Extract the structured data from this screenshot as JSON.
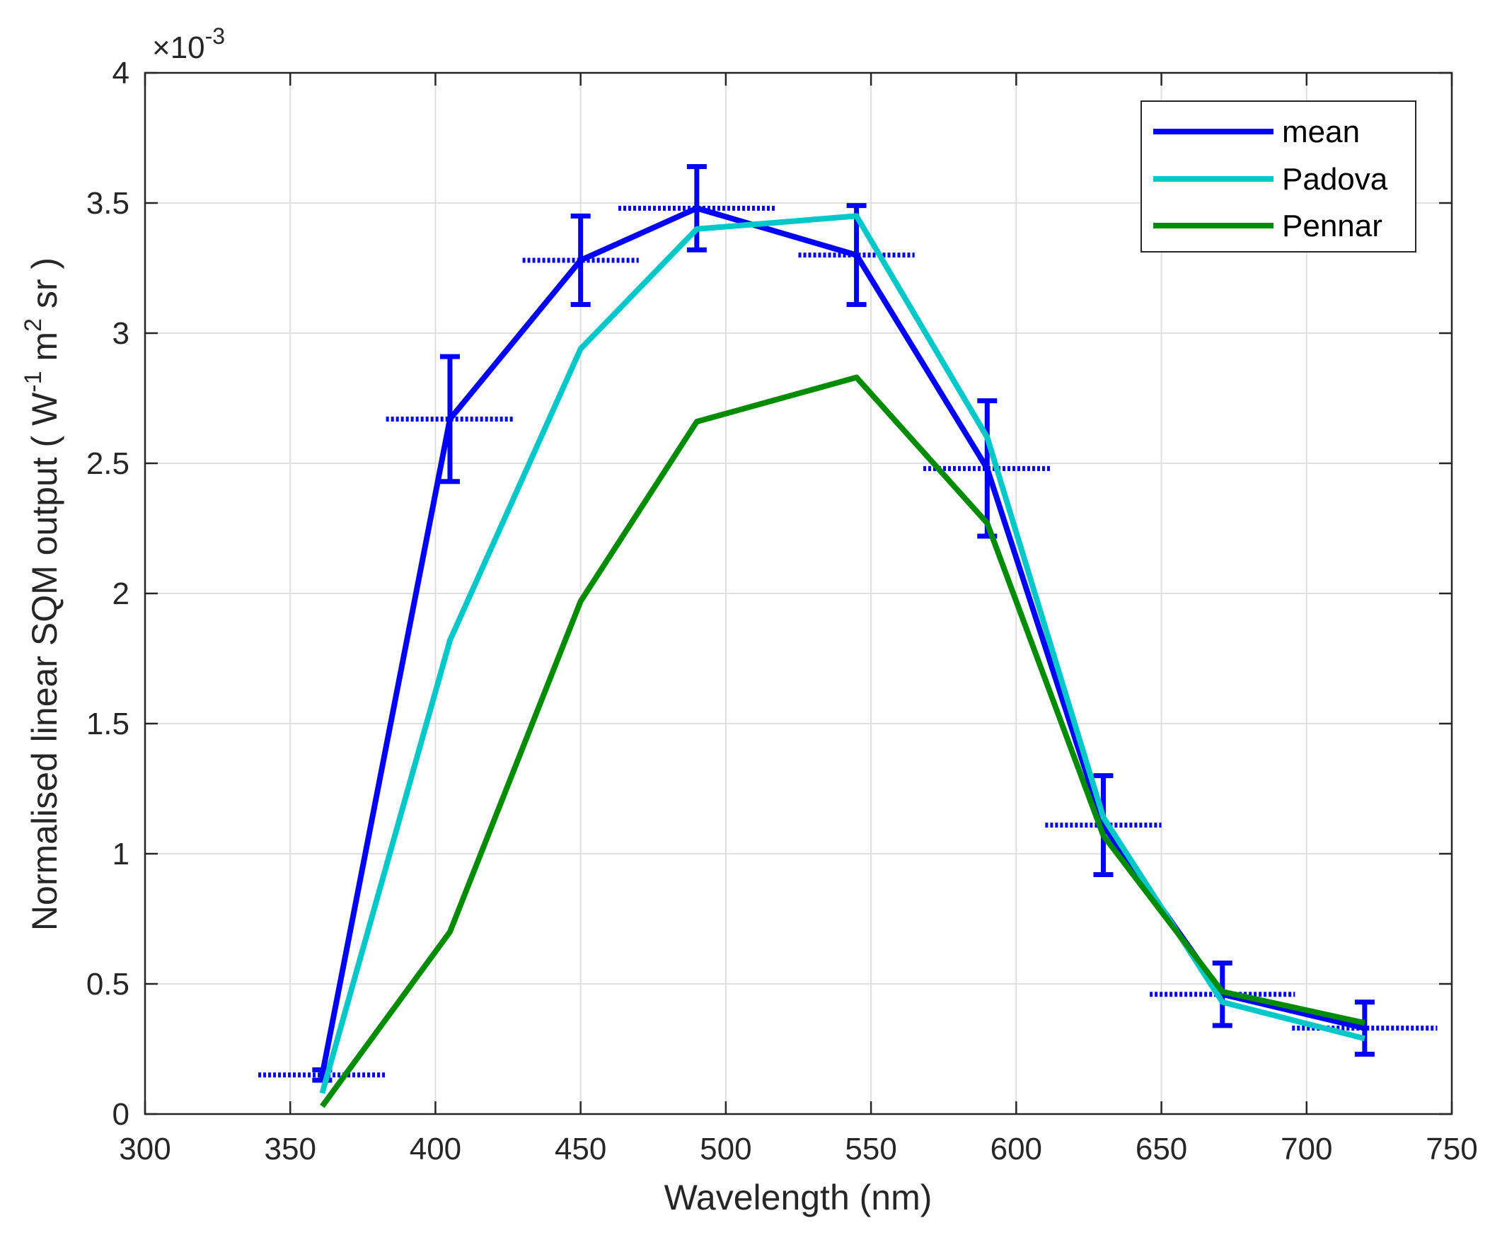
{
  "chart_data": {
    "type": "line",
    "title": "",
    "xlabel": "Wavelength (nm)",
    "ylabel": {
      "prefix": "Normalised linear SQM output ( W",
      "sup1": "-1",
      "mid": " m",
      "sup2": "2",
      "suffix": " sr )"
    },
    "y_exponent": {
      "base": "×10",
      "power": "-3"
    },
    "xlim": [
      300,
      750
    ],
    "ylim": [
      0,
      4
    ],
    "xticks": [
      300,
      350,
      400,
      450,
      500,
      550,
      600,
      650,
      700,
      750
    ],
    "yticks": [
      0,
      0.5,
      1,
      1.5,
      2,
      2.5,
      3,
      3.5,
      4
    ],
    "xtick_labels": [
      "300",
      "350",
      "400",
      "450",
      "500",
      "550",
      "600",
      "650",
      "700",
      "750"
    ],
    "ytick_labels": [
      "0",
      "0.5",
      "1",
      "1.5",
      "2",
      "2.5",
      "3",
      "3.5",
      "4"
    ],
    "grid": true,
    "legend_position": "top-right",
    "series": [
      {
        "name": "mean",
        "color": "#0000ff",
        "x": [
          361,
          405,
          450,
          490,
          545,
          590,
          630,
          671,
          720
        ],
        "y": [
          0.15,
          2.67,
          3.28,
          3.48,
          3.3,
          2.48,
          1.11,
          0.46,
          0.33
        ],
        "error_y": [
          0.02,
          0.24,
          0.17,
          0.16,
          0.19,
          0.26,
          0.19,
          0.12,
          0.1
        ],
        "error_x": [
          22,
          22,
          20,
          27,
          20,
          22,
          20,
          25,
          25
        ]
      },
      {
        "name": "Padova",
        "color": "#00c8c8",
        "x": [
          361,
          405,
          450,
          490,
          545,
          590,
          630,
          671,
          720
        ],
        "y": [
          0.08,
          1.82,
          2.94,
          3.4,
          3.45,
          2.6,
          1.14,
          0.43,
          0.29
        ]
      },
      {
        "name": "Pennar",
        "color": "#008c00",
        "x": [
          361,
          405,
          450,
          490,
          545,
          590,
          630,
          671,
          720
        ],
        "y": [
          0.03,
          0.7,
          1.97,
          2.66,
          2.83,
          2.27,
          1.07,
          0.47,
          0.35
        ]
      }
    ]
  }
}
